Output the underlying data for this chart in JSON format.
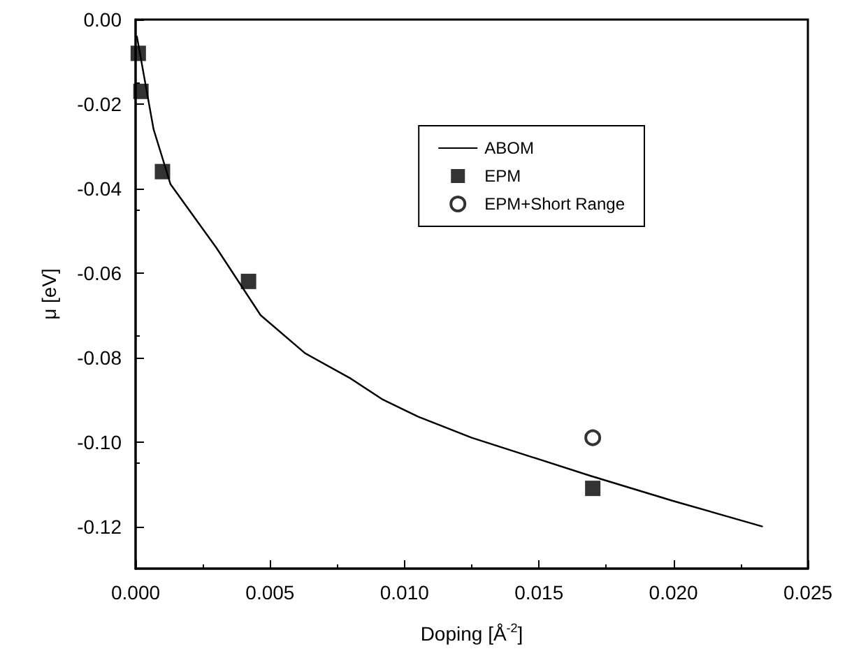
{
  "chart_data": {
    "type": "line",
    "xlabel": "Doping [Å$^{-2}$]",
    "ylabel": "μ [eV]",
    "xlim": [
      0,
      0.025
    ],
    "xticks": [
      {
        "value": 0,
        "label": "0.000"
      },
      {
        "value": 0.005,
        "label": "0.005"
      },
      {
        "value": 0.01,
        "label": "0.010"
      },
      {
        "value": 0.015,
        "label": "0.015"
      },
      {
        "value": 0.02,
        "label": "0.020"
      },
      {
        "value": 0.025,
        "label": "0.025"
      }
    ],
    "ylim": [
      -0.13,
      0
    ],
    "yticks": [
      {
        "value": 0,
        "label": "0.00"
      },
      {
        "value": -0.02,
        "label": "-0.02"
      },
      {
        "value": -0.04,
        "label": "-0.04"
      },
      {
        "value": -0.06,
        "label": "-0.06"
      },
      {
        "value": -0.08,
        "label": "-0.08"
      },
      {
        "value": -0.1,
        "label": "-0.10"
      },
      {
        "value": -0.12,
        "label": "-0.12"
      }
    ],
    "grid": false,
    "legend": "top right",
    "series": [
      {
        "name": "ABOM",
        "color": "#000000",
        "marker": "none",
        "line_style": "solid",
        "x": [
          5e-05,
          0.00067,
          0.0013,
          0.003,
          0.00465,
          0.0063,
          0.008,
          0.0092,
          0.0105,
          0.0125,
          0.0169,
          0.02,
          0.0233
        ],
        "values": [
          -0.004,
          -0.026,
          -0.039,
          -0.054,
          -0.07,
          -0.079,
          -0.085,
          -0.09,
          -0.094,
          -0.099,
          -0.108,
          -0.114,
          -0.12
        ]
      },
      {
        "name": "EPM",
        "type": "scatter",
        "color": "#000000",
        "marker": "square",
        "x": [
          0.0001,
          0.0002,
          0.001,
          0.0042,
          0.017
        ],
        "values": [
          -0.008,
          -0.017,
          -0.036,
          -0.062,
          -0.111
        ]
      },
      {
        "name": "EPM+Short Range",
        "type": "scatter",
        "color": "#000000",
        "marker": "circle",
        "x": [
          0.017
        ],
        "values": [
          -0.099
        ]
      }
    ]
  }
}
